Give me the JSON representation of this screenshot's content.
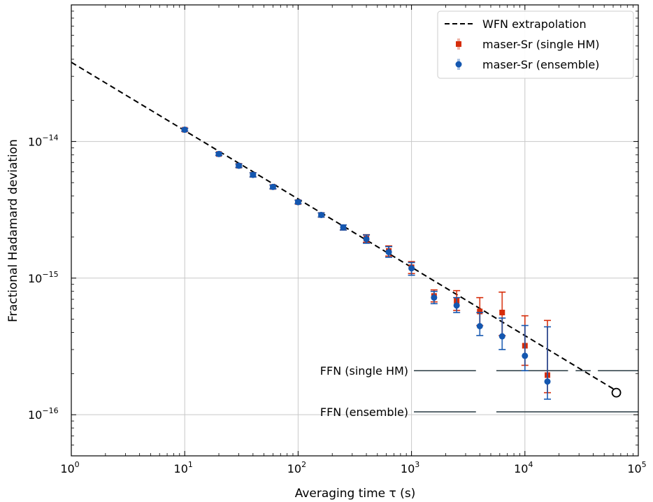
{
  "chart_data": {
    "type": "scatter",
    "xscale": "log",
    "yscale": "log",
    "xlim": [
      1,
      100000
    ],
    "ylim": [
      5e-17,
      1e-13
    ],
    "grid": true,
    "xlabel": "Averaging time τ  (s)",
    "ylabel": "Fractional Hadamard deviation",
    "x_ticks": [
      {
        "value": 1,
        "base": "10",
        "exp": "0"
      },
      {
        "value": 10,
        "base": "10",
        "exp": "1"
      },
      {
        "value": 100,
        "base": "10",
        "exp": "2"
      },
      {
        "value": 1000,
        "base": "10",
        "exp": "3"
      },
      {
        "value": 10000,
        "base": "10",
        "exp": "4"
      },
      {
        "value": 100000,
        "base": "10",
        "exp": "5"
      }
    ],
    "y_ticks": [
      {
        "value": 1e-16,
        "base": "10",
        "exp": "−16"
      },
      {
        "value": 1e-15,
        "base": "10",
        "exp": "−15"
      },
      {
        "value": 1e-14,
        "base": "10",
        "exp": "−14"
      }
    ],
    "legend": {
      "position": "top-right",
      "entries": [
        {
          "label": "WFN extrapolation",
          "style": "dashed-line",
          "color": "#000000"
        },
        {
          "label": "maser-Sr (single HM)",
          "style": "square-marker",
          "color": "#d62d0a"
        },
        {
          "label": "maser-Sr (ensemble)",
          "style": "circle-marker",
          "color": "#1457b0"
        }
      ]
    },
    "wfn_line": {
      "name": "WFN extrapolation",
      "x": [
        1,
        64000
      ],
      "y": [
        3.8e-14,
        1.5e-16
      ],
      "color": "#000000",
      "end_marker": {
        "x": 64000,
        "y": 1.45e-16
      }
    },
    "ffn_lines": [
      {
        "label": "FFN (single HM)",
        "y": 2.1e-16,
        "x_from": 1050,
        "x_to": 100000,
        "gaps": [
          [
            3700,
            5600
          ],
          [
            24000,
            28000
          ],
          [
            38000,
            44000
          ]
        ],
        "color": "#37474f"
      },
      {
        "label": "FFN (ensemble)",
        "y": 1.05e-16,
        "x_from": 1050,
        "x_to": 100000,
        "gaps": [
          [
            3700,
            5600
          ]
        ],
        "color": "#37474f"
      }
    ],
    "series": [
      {
        "name": "maser-Sr (single HM)",
        "marker": "square",
        "color": "#d62d0a",
        "points": [
          {
            "x": 10,
            "y": 1.22e-14,
            "lo": 1.19e-14,
            "hi": 1.25e-14
          },
          {
            "x": 20,
            "y": 8.1e-15,
            "lo": 7.9e-15,
            "hi": 8.3e-15
          },
          {
            "x": 30,
            "y": 6.65e-15,
            "lo": 6.45e-15,
            "hi": 6.85e-15
          },
          {
            "x": 40,
            "y": 5.7e-15,
            "lo": 5.5e-15,
            "hi": 5.9e-15
          },
          {
            "x": 60,
            "y": 4.65e-15,
            "lo": 4.5e-15,
            "hi": 4.8e-15
          },
          {
            "x": 100,
            "y": 3.6e-15,
            "lo": 3.5e-15,
            "hi": 3.72e-15
          },
          {
            "x": 160,
            "y": 2.9e-15,
            "lo": 2.8e-15,
            "hi": 3e-15
          },
          {
            "x": 250,
            "y": 2.35e-15,
            "lo": 2.25e-15,
            "hi": 2.45e-15
          },
          {
            "x": 400,
            "y": 1.95e-15,
            "lo": 1.83e-15,
            "hi": 2.08e-15
          },
          {
            "x": 630,
            "y": 1.58e-15,
            "lo": 1.45e-15,
            "hi": 1.72e-15
          },
          {
            "x": 1000,
            "y": 1.2e-15,
            "lo": 1.08e-15,
            "hi": 1.32e-15
          },
          {
            "x": 1580,
            "y": 7.4e-16,
            "lo": 6.7e-16,
            "hi": 8.2e-16
          },
          {
            "x": 2500,
            "y": 6.8e-16,
            "lo": 5.8e-16,
            "hi": 8.1e-16
          },
          {
            "x": 4000,
            "y": 5.7e-16,
            "lo": 4.5e-16,
            "hi": 7.2e-16
          },
          {
            "x": 6300,
            "y": 5.6e-16,
            "lo": 3.8e-16,
            "hi": 7.9e-16
          },
          {
            "x": 10000,
            "y": 3.2e-16,
            "lo": 2.3e-16,
            "hi": 5.3e-16
          },
          {
            "x": 15800,
            "y": 1.95e-16,
            "lo": 1.45e-16,
            "hi": 4.9e-16
          }
        ]
      },
      {
        "name": "maser-Sr (ensemble)",
        "marker": "circle",
        "color": "#1457b0",
        "points": [
          {
            "x": 10,
            "y": 1.22e-14,
            "lo": 1.19e-14,
            "hi": 1.25e-14
          },
          {
            "x": 20,
            "y": 8.1e-15,
            "lo": 7.9e-15,
            "hi": 8.3e-15
          },
          {
            "x": 30,
            "y": 6.65e-15,
            "lo": 6.45e-15,
            "hi": 6.85e-15
          },
          {
            "x": 40,
            "y": 5.7e-15,
            "lo": 5.5e-15,
            "hi": 5.9e-15
          },
          {
            "x": 60,
            "y": 4.65e-15,
            "lo": 4.5e-15,
            "hi": 4.8e-15
          },
          {
            "x": 100,
            "y": 3.6e-15,
            "lo": 3.5e-15,
            "hi": 3.72e-15
          },
          {
            "x": 160,
            "y": 2.9e-15,
            "lo": 2.8e-15,
            "hi": 3e-15
          },
          {
            "x": 250,
            "y": 2.35e-15,
            "lo": 2.25e-15,
            "hi": 2.45e-15
          },
          {
            "x": 400,
            "y": 1.93e-15,
            "lo": 1.8e-15,
            "hi": 2.07e-15
          },
          {
            "x": 630,
            "y": 1.55e-15,
            "lo": 1.42e-15,
            "hi": 1.7e-15
          },
          {
            "x": 1000,
            "y": 1.18e-15,
            "lo": 1.05e-15,
            "hi": 1.3e-15
          },
          {
            "x": 1580,
            "y": 7.2e-16,
            "lo": 6.5e-16,
            "hi": 8e-16
          },
          {
            "x": 2500,
            "y": 6.3e-16,
            "lo": 5.6e-16,
            "hi": 7.2e-16
          },
          {
            "x": 4000,
            "y": 4.45e-16,
            "lo": 3.8e-16,
            "hi": 5.6e-16
          },
          {
            "x": 6300,
            "y": 3.75e-16,
            "lo": 3e-16,
            "hi": 5.1e-16
          },
          {
            "x": 10000,
            "y": 2.7e-16,
            "lo": 2.1e-16,
            "hi": 4.5e-16
          },
          {
            "x": 15800,
            "y": 1.75e-16,
            "lo": 1.3e-16,
            "hi": 4.4e-16
          }
        ]
      }
    ]
  }
}
